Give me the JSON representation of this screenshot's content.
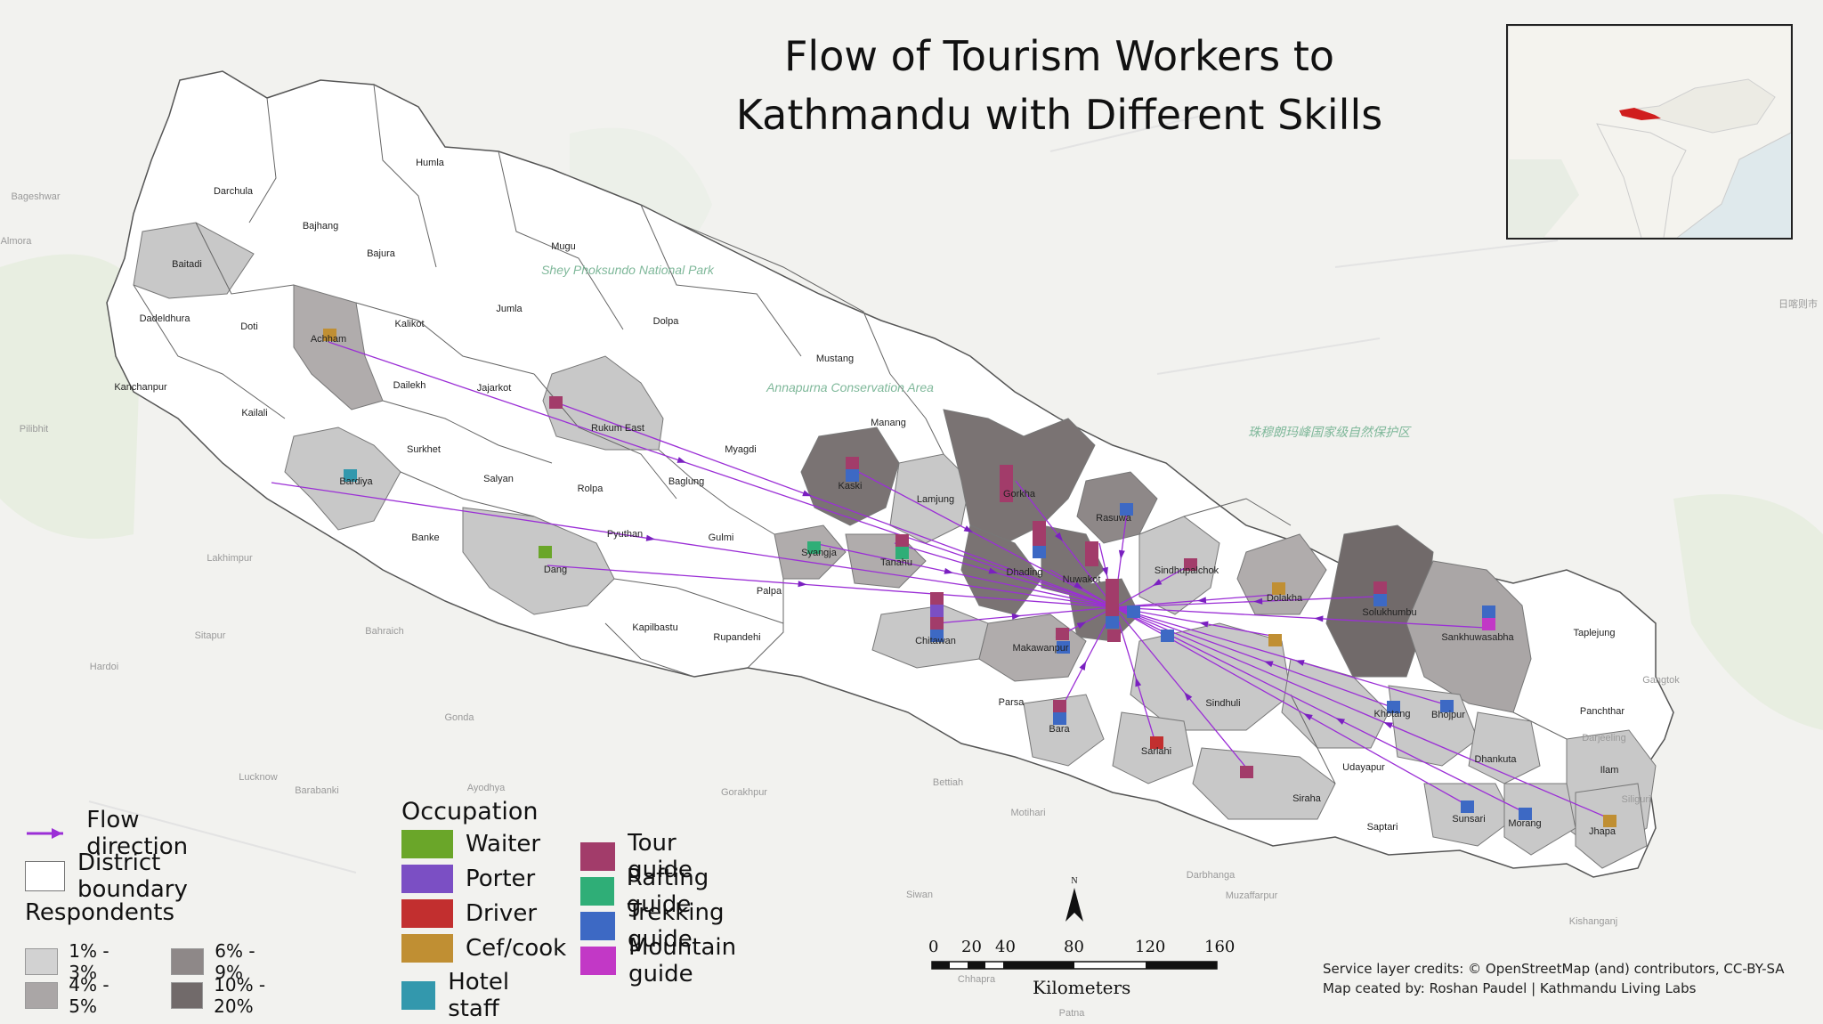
{
  "title_line1": "Flow of Tourism Workers to",
  "title_line2": "Kathmandu with Different Skills",
  "legend": {
    "flow_label": "Flow direction",
    "boundary_label": "District boundary",
    "respondents_title": "Respondents",
    "respondents": [
      {
        "label": "1% - 3%",
        "color": "#d2d2d2"
      },
      {
        "label": "4% - 5%",
        "color": "#aaa6a6"
      },
      {
        "label": "6% - 9%",
        "color": "#8e8888"
      },
      {
        "label": "10% - 20%",
        "color": "#716a6a"
      }
    ],
    "occupation_title": "Occupation",
    "occupations": [
      {
        "label": "Waiter",
        "color": "#6aa629"
      },
      {
        "label": "Porter",
        "color": "#7b4fc4"
      },
      {
        "label": "Driver",
        "color": "#c22f2f"
      },
      {
        "label": "Cef/cook",
        "color": "#c08f33"
      },
      {
        "label": "Hotel staff",
        "color": "#3398ad"
      },
      {
        "label": "Tour guide",
        "color": "#a23c6a"
      },
      {
        "label": "Rafting guide",
        "color": "#2fae77"
      },
      {
        "label": "Trekking guide",
        "color": "#3d69c4"
      },
      {
        "label": "Mountain guide",
        "color": "#c238c6"
      }
    ]
  },
  "scale": {
    "ticks": [
      "0",
      "20",
      "40",
      "80",
      "120",
      "160"
    ],
    "unit": "Kilometers",
    "north": "N"
  },
  "credits_line1": "Service layer credits: © OpenStreetMap (and) contributors, CC-BY-SA",
  "credits_line2": "Map ceated by: Roshan Paudel | Kathmandu Living Labs",
  "districts": [
    {
      "name": "Humla"
    },
    {
      "name": "Darchula"
    },
    {
      "name": "Bajhang"
    },
    {
      "name": "Bajura"
    },
    {
      "name": "Mugu"
    },
    {
      "name": "Baitadi"
    },
    {
      "name": "Dadeldhura"
    },
    {
      "name": "Doti"
    },
    {
      "name": "Achham"
    },
    {
      "name": "Kalikot"
    },
    {
      "name": "Jumla"
    },
    {
      "name": "Dolpa"
    },
    {
      "name": "Kanchanpur"
    },
    {
      "name": "Kailali"
    },
    {
      "name": "Dailekh"
    },
    {
      "name": "Jajarkot"
    },
    {
      "name": "Mustang"
    },
    {
      "name": "Manang"
    },
    {
      "name": "Rukum East"
    },
    {
      "name": "Surkhet"
    },
    {
      "name": "Myagdi"
    },
    {
      "name": "Bardiya"
    },
    {
      "name": "Salyan"
    },
    {
      "name": "Rolpa"
    },
    {
      "name": "Baglung"
    },
    {
      "name": "Kaski"
    },
    {
      "name": "Lamjung"
    },
    {
      "name": "Gorkha"
    },
    {
      "name": "Rasuwa"
    },
    {
      "name": "Banke"
    },
    {
      "name": "Pyuthan"
    },
    {
      "name": "Gulmi"
    },
    {
      "name": "Syangja"
    },
    {
      "name": "Tanahu"
    },
    {
      "name": "Dhading"
    },
    {
      "name": "Nuwakot"
    },
    {
      "name": "Sindhupalchok"
    },
    {
      "name": "Dang"
    },
    {
      "name": "Dolakha"
    },
    {
      "name": "Solukhumbu"
    },
    {
      "name": "Palpa"
    },
    {
      "name": "Kapilbastu"
    },
    {
      "name": "Rupandehi"
    },
    {
      "name": "Chitawan"
    },
    {
      "name": "Makawanpur"
    },
    {
      "name": "Sankhuwasabha"
    },
    {
      "name": "Taplejung"
    },
    {
      "name": "Parsa"
    },
    {
      "name": "Sindhuli"
    },
    {
      "name": "Khotang"
    },
    {
      "name": "Bhojpur"
    },
    {
      "name": "Panchthar"
    },
    {
      "name": "Bara"
    },
    {
      "name": "Sarlahi"
    },
    {
      "name": "Dhankuta"
    },
    {
      "name": "Ilam"
    },
    {
      "name": "Udayapur"
    },
    {
      "name": "Siraha"
    },
    {
      "name": "Saptari"
    },
    {
      "name": "Sunsari"
    },
    {
      "name": "Morang"
    },
    {
      "name": "Jhapa"
    }
  ],
  "background_labels": [
    "Bageshwar",
    "Almora",
    "Pilibhit",
    "Bahraich",
    "Sitapur",
    "Hardoi",
    "Gonda",
    "Lakhimpur",
    "Lucknow",
    "Barabanki",
    "Ayodhya",
    "Gorakhpur",
    "Bettiah",
    "Motihari",
    "Darbhanga",
    "Muzaffarpur",
    "Siwan",
    "Chhapra",
    "Patna",
    "Kishanganj",
    "Siliguri",
    "Darjeeling",
    "Gangtok",
    "Shey Phoksundo National Park",
    "Annapurna Conservation Area",
    "珠穆朗玛峰国家级自然保护区",
    "日喀则市"
  ]
}
